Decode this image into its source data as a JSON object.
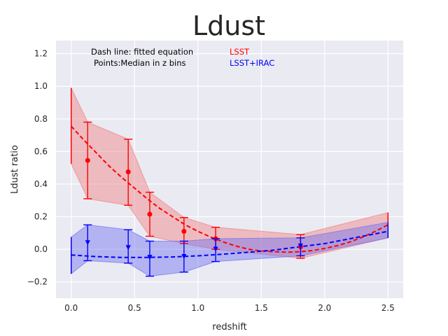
{
  "chart_data": {
    "type": "line",
    "title": "Ldust",
    "xlabel": "redshift",
    "ylabel": "Ldust ratio",
    "xlim": [
      -0.12,
      2.62
    ],
    "ylim": [
      -0.3,
      1.28
    ],
    "xticks": [
      0.0,
      0.5,
      1.0,
      1.5,
      2.0,
      2.5
    ],
    "xtick_labels": [
      "0.0",
      "0.5",
      "1.0",
      "1.5",
      "2.0",
      "2.5"
    ],
    "yticks": [
      -0.2,
      0.0,
      0.2,
      0.4,
      0.6,
      0.8,
      1.0,
      1.2
    ],
    "ytick_labels": [
      "−0.2",
      "0.0",
      "0.2",
      "0.4",
      "0.6",
      "0.8",
      "1.0",
      "1.2"
    ],
    "grid": true,
    "annotations": [
      "Dash line: fitted equation",
      "Points:Median in z bins"
    ],
    "legend_placement": "top-center",
    "series": [
      {
        "name": "LSST",
        "color": "#ff0000",
        "band_color": "#f08080",
        "marker": "circle",
        "fit_curve": {
          "x": [
            0.0,
            0.1,
            0.2,
            0.3,
            0.4,
            0.5,
            0.6,
            0.7,
            0.8,
            0.9,
            1.0,
            1.1,
            1.2,
            1.3,
            1.4,
            1.5,
            1.6,
            1.7,
            1.8,
            1.9,
            2.0,
            2.1,
            2.2,
            2.3,
            2.4,
            2.5
          ],
          "y": [
            0.755,
            0.67,
            0.59,
            0.51,
            0.44,
            0.375,
            0.31,
            0.25,
            0.2,
            0.15,
            0.11,
            0.075,
            0.045,
            0.02,
            0.0,
            -0.01,
            -0.015,
            -0.018,
            -0.015,
            -0.008,
            0.005,
            0.022,
            0.045,
            0.075,
            0.11,
            0.15
          ]
        },
        "points": [
          {
            "x": 0.13,
            "y": 0.545,
            "err_low": 0.31,
            "err_high": 0.78
          },
          {
            "x": 0.45,
            "y": 0.475,
            "err_low": 0.27,
            "err_high": 0.675
          },
          {
            "x": 0.62,
            "y": 0.215,
            "err_low": 0.08,
            "err_high": 0.35
          },
          {
            "x": 0.89,
            "y": 0.11,
            "err_low": 0.035,
            "err_high": 0.195
          },
          {
            "x": 1.14,
            "y": 0.065,
            "err_low": 0.0,
            "err_high": 0.135
          },
          {
            "x": 1.81,
            "y": 0.015,
            "err_low": -0.055,
            "err_high": 0.09
          }
        ],
        "band": {
          "x": [
            0.0,
            0.13,
            0.45,
            0.62,
            0.89,
            1.14,
            1.81,
            2.5
          ],
          "lower": [
            0.525,
            0.31,
            0.27,
            0.08,
            0.035,
            0.0,
            -0.055,
            0.07
          ],
          "upper": [
            0.99,
            0.78,
            0.675,
            0.35,
            0.195,
            0.135,
            0.09,
            0.225
          ]
        }
      },
      {
        "name": "LSST+IRAC",
        "color": "#0000ff",
        "band_color": "#7070f0",
        "marker": "triangle-down",
        "fit_curve": {
          "x": [
            0.0,
            0.2,
            0.4,
            0.6,
            0.8,
            1.0,
            1.2,
            1.4,
            1.6,
            1.8,
            2.0,
            2.2,
            2.4,
            2.5
          ],
          "y": [
            -0.035,
            -0.045,
            -0.05,
            -0.05,
            -0.047,
            -0.04,
            -0.03,
            -0.018,
            -0.005,
            0.015,
            0.035,
            0.065,
            0.095,
            0.11
          ]
        },
        "points": [
          {
            "x": 0.13,
            "y": 0.04,
            "err_low": -0.07,
            "err_high": 0.15
          },
          {
            "x": 0.45,
            "y": 0.01,
            "err_low": -0.085,
            "err_high": 0.12
          },
          {
            "x": 0.62,
            "y": -0.05,
            "err_low": -0.165,
            "err_high": 0.05
          },
          {
            "x": 0.89,
            "y": -0.045,
            "err_low": -0.14,
            "err_high": 0.05
          },
          {
            "x": 1.14,
            "y": 0.0,
            "err_low": -0.075,
            "err_high": 0.065
          },
          {
            "x": 1.81,
            "y": 0.02,
            "err_low": -0.04,
            "err_high": 0.07
          }
        ],
        "band": {
          "x": [
            0.0,
            0.13,
            0.45,
            0.62,
            0.89,
            1.14,
            1.81,
            2.5
          ],
          "lower": [
            -0.15,
            -0.07,
            -0.085,
            -0.165,
            -0.14,
            -0.075,
            -0.04,
            0.07
          ],
          "upper": [
            0.075,
            0.15,
            0.12,
            0.05,
            0.05,
            0.065,
            0.07,
            0.165
          ]
        }
      }
    ]
  }
}
